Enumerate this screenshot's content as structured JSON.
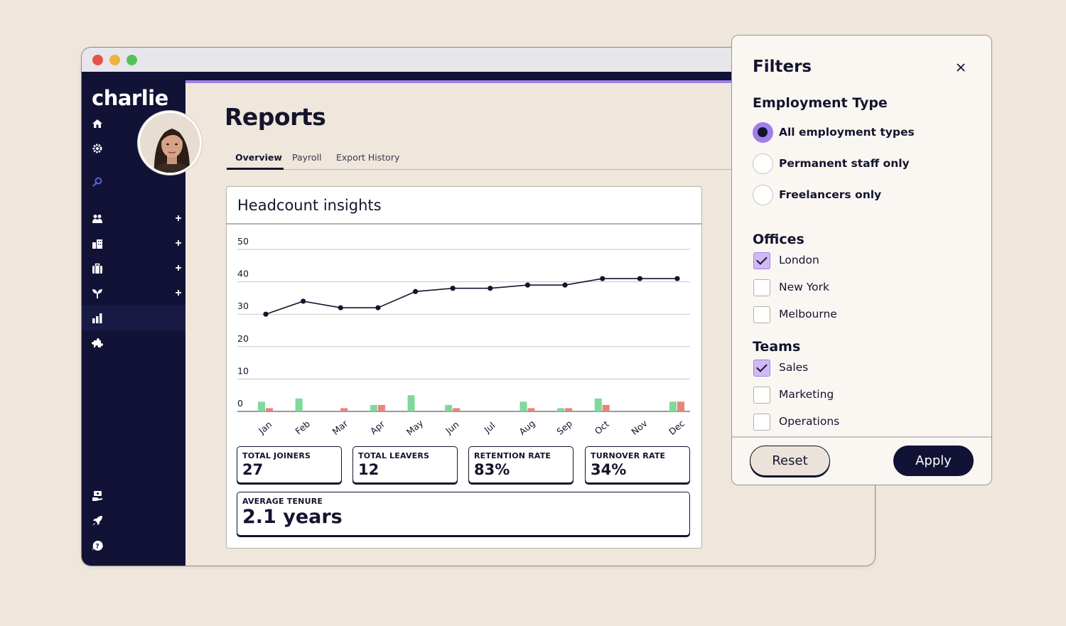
{
  "app": {
    "logo": "charlie"
  },
  "colors": {
    "sidebar": "#111236",
    "accent": "#9f7fea",
    "joiners": "#7fd99b",
    "leavers": "#e5857c",
    "background": "#efe7dc"
  },
  "sidebar": {
    "icons": [
      "home-icon",
      "gear-icon",
      "search-icon",
      "people-icon",
      "buildings-icon",
      "briefcase-icon",
      "plant-icon",
      "bar-chart-icon",
      "puzzle-icon",
      "money-hand-icon",
      "rocket-icon",
      "help-icon"
    ],
    "plus_label": "+"
  },
  "header": {
    "title": "Reports",
    "tabs": [
      "Overview",
      "Payroll",
      "Export History"
    ]
  },
  "card": {
    "title": "Headcount insights"
  },
  "chart_data": {
    "type": "line",
    "categories": [
      "Jan",
      "Feb",
      "Mar",
      "Apr",
      "May",
      "Jun",
      "Jul",
      "Aug",
      "Sep",
      "Oct",
      "Nov",
      "Dec"
    ],
    "series": [
      {
        "values": [
          30,
          34,
          32,
          32,
          37,
          38,
          38,
          39,
          39,
          41,
          41,
          41
        ]
      }
    ],
    "bars": [
      {
        "values": [
          3,
          4,
          0,
          2,
          5,
          2,
          0,
          3,
          1,
          4,
          0,
          3
        ]
      },
      {
        "values": [
          1,
          0,
          1,
          2,
          0,
          1,
          0,
          1,
          1,
          2,
          0,
          3
        ]
      }
    ],
    "yticks": [
      "0",
      "10",
      "20",
      "30",
      "40",
      "50"
    ],
    "ylim": [
      0,
      50
    ],
    "grid": true
  },
  "stats": [
    {
      "label": "TOTAL JOINERS",
      "value": "27"
    },
    {
      "label": "TOTAL LEAVERS",
      "value": "12"
    },
    {
      "label": "RETENTION RATE",
      "value": "83%"
    },
    {
      "label": "TURNOVER RATE",
      "value": "34%"
    }
  ],
  "tenure": {
    "label": "AVERAGE TENURE",
    "value": "2.1 years"
  },
  "filters": {
    "title": "Filters",
    "employment": {
      "title": "Employment Type",
      "options": [
        "All employment types",
        "Permanent staff only",
        "Freelancers only"
      ],
      "selected": "All employment types"
    },
    "offices": {
      "title": "Offices",
      "options": [
        {
          "label": "London",
          "checked": true
        },
        {
          "label": "New York",
          "checked": false
        },
        {
          "label": "Melbourne",
          "checked": false
        }
      ]
    },
    "teams": {
      "title": "Teams",
      "options": [
        {
          "label": "Sales",
          "checked": true
        },
        {
          "label": "Marketing",
          "checked": false
        },
        {
          "label": "Operations",
          "checked": false
        }
      ]
    },
    "reset_label": "Reset",
    "apply_label": "Apply"
  }
}
